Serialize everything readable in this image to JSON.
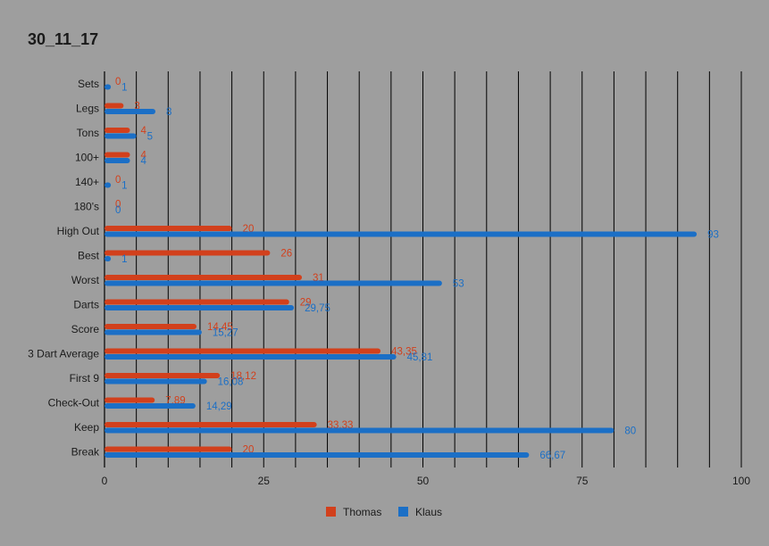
{
  "chart_data": {
    "type": "bar",
    "orientation": "horizontal",
    "title": "30_11_17",
    "categories": [
      "Sets",
      "Legs",
      "Tons",
      "100+",
      "140+",
      "180's",
      "High Out",
      "Best",
      "Worst",
      "Darts",
      "Score",
      "3 Dart Average",
      "First 9",
      "Check-Out",
      "Keep",
      "Break"
    ],
    "series": [
      {
        "name": "Thomas",
        "color": "#d2401c",
        "values": [
          0,
          3,
          4,
          4,
          0,
          0,
          20,
          26,
          31,
          29,
          14.45,
          43.35,
          18.12,
          7.89,
          33.33,
          20
        ],
        "labels": [
          "0",
          "3",
          "4",
          "4",
          "0",
          "0",
          "20",
          "26",
          "31",
          "29",
          "14,45",
          "43,35",
          "18,12",
          "7,89",
          "33,33",
          "20"
        ]
      },
      {
        "name": "Klaus",
        "color": "#1b6fc6",
        "values": [
          1,
          8,
          5,
          4,
          1,
          0,
          93,
          1,
          53,
          29.75,
          15.27,
          45.81,
          16.08,
          14.29,
          80,
          66.67
        ],
        "labels": [
          "1",
          "8",
          "5",
          "4",
          "1",
          "0",
          "93",
          "1",
          "53",
          "29,75",
          "15,27",
          "45,81",
          "16,08",
          "14,29",
          "80",
          "66,67"
        ]
      }
    ],
    "xlim": [
      0,
      100
    ],
    "xticks": [
      "0",
      "25",
      "50",
      "75",
      "100"
    ],
    "grid": true,
    "legend_position": "bottom"
  }
}
